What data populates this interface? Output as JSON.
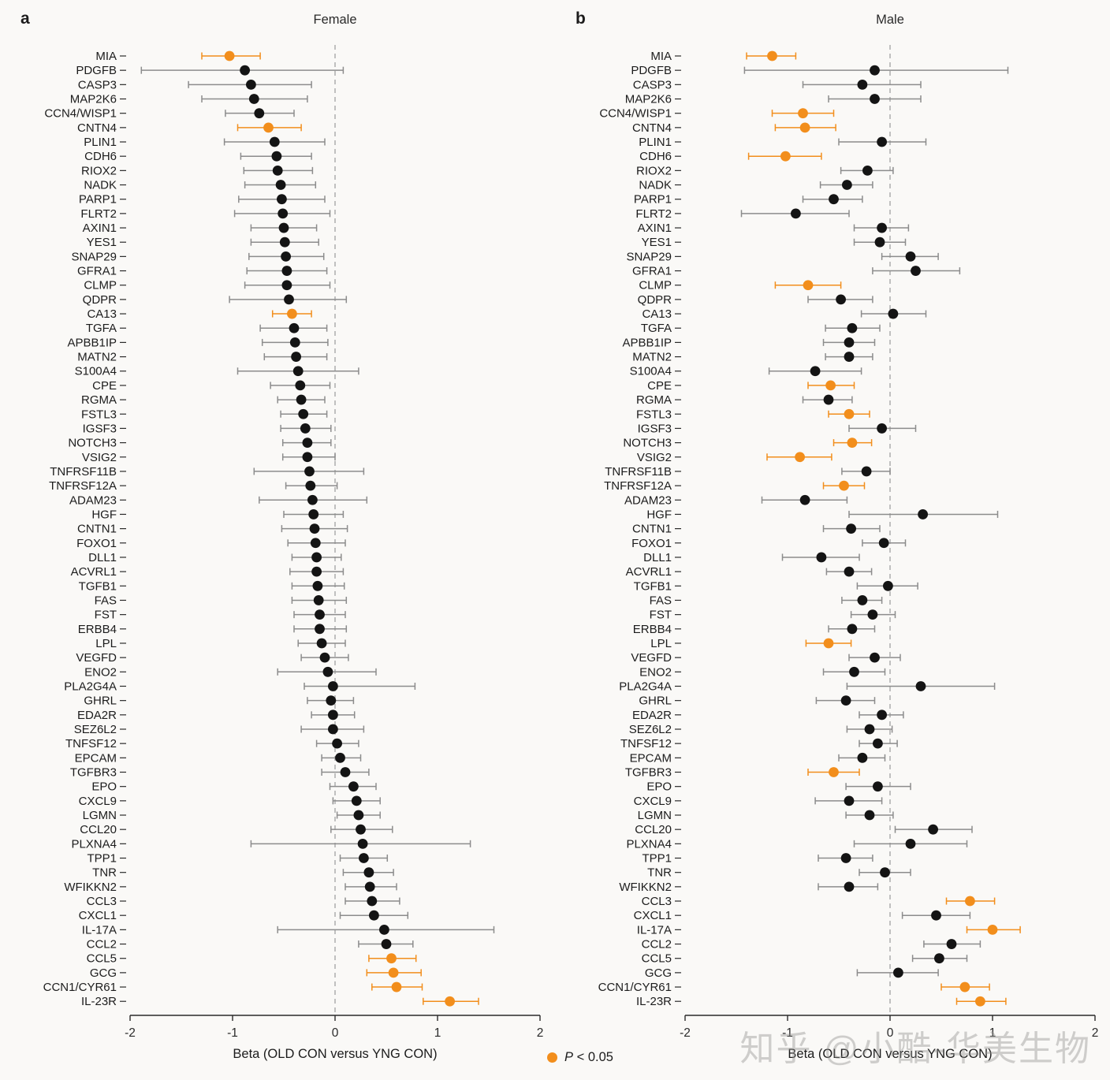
{
  "figure": {
    "legend": {
      "p": "P",
      "rest": " < 0.05"
    },
    "watermark": "知乎 @小酷-华美生物"
  },
  "colors": {
    "significant": "#f28e1c",
    "point": "#141414",
    "errorbar": "#8c8c8c",
    "axis": "#2b2b2b",
    "zero_line": "#a8a8a8",
    "text": "#1c1c1c"
  },
  "chart_data": [
    {
      "id": "female",
      "type": "scatter",
      "panel_letter": "a",
      "title": "Female",
      "xlabel": "Beta (OLD CON versus YNG CON)",
      "xlim": [
        -2,
        2
      ],
      "xticks": [
        -2,
        -1,
        0,
        1,
        2
      ],
      "zero_line": 0,
      "legend_position": "bottom-center",
      "columns": [
        "gene",
        "beta",
        "ci_low",
        "ci_high",
        "significant"
      ],
      "rows": [
        [
          "MIA",
          -1.03,
          -1.3,
          -0.73,
          1
        ],
        [
          "PDGFB",
          -0.88,
          -1.89,
          0.08,
          0
        ],
        [
          "CASP3",
          -0.82,
          -1.43,
          -0.23,
          0
        ],
        [
          "MAP2K6",
          -0.79,
          -1.3,
          -0.27,
          0
        ],
        [
          "CCN4/WISP1",
          -0.74,
          -1.07,
          -0.4,
          0
        ],
        [
          "CNTN4",
          -0.65,
          -0.95,
          -0.33,
          1
        ],
        [
          "PLIN1",
          -0.59,
          -1.08,
          -0.1,
          0
        ],
        [
          "CDH6",
          -0.57,
          -0.92,
          -0.23,
          0
        ],
        [
          "RIOX2",
          -0.56,
          -0.89,
          -0.22,
          0
        ],
        [
          "NADK",
          -0.53,
          -0.88,
          -0.19,
          0
        ],
        [
          "PARP1",
          -0.52,
          -0.94,
          -0.1,
          0
        ],
        [
          "FLRT2",
          -0.51,
          -0.98,
          -0.05,
          0
        ],
        [
          "AXIN1",
          -0.5,
          -0.82,
          -0.18,
          0
        ],
        [
          "YES1",
          -0.49,
          -0.82,
          -0.16,
          0
        ],
        [
          "SNAP29",
          -0.48,
          -0.84,
          -0.11,
          0
        ],
        [
          "GFRA1",
          -0.47,
          -0.86,
          -0.08,
          0
        ],
        [
          "CLMP",
          -0.47,
          -0.88,
          -0.05,
          0
        ],
        [
          "QDPR",
          -0.45,
          -1.03,
          0.11,
          0
        ],
        [
          "CA13",
          -0.42,
          -0.61,
          -0.23,
          1
        ],
        [
          "TGFA",
          -0.4,
          -0.73,
          -0.08,
          0
        ],
        [
          "APBB1IP",
          -0.39,
          -0.71,
          -0.07,
          0
        ],
        [
          "MATN2",
          -0.38,
          -0.69,
          -0.08,
          0
        ],
        [
          "S100A4",
          -0.36,
          -0.95,
          0.23,
          0
        ],
        [
          "CPE",
          -0.34,
          -0.63,
          -0.05,
          0
        ],
        [
          "RGMA",
          -0.33,
          -0.56,
          -0.1,
          0
        ],
        [
          "FSTL3",
          -0.31,
          -0.53,
          -0.08,
          0
        ],
        [
          "IGSF3",
          -0.29,
          -0.53,
          -0.04,
          0
        ],
        [
          "NOTCH3",
          -0.27,
          -0.51,
          -0.04,
          0
        ],
        [
          "VSIG2",
          -0.27,
          -0.51,
          0.0,
          0
        ],
        [
          "TNFRSF11B",
          -0.25,
          -0.79,
          0.28,
          0
        ],
        [
          "TNFRSF12A",
          -0.24,
          -0.48,
          0.02,
          0
        ],
        [
          "ADAM23",
          -0.22,
          -0.74,
          0.31,
          0
        ],
        [
          "HGF",
          -0.21,
          -0.5,
          0.08,
          0
        ],
        [
          "CNTN1",
          -0.2,
          -0.52,
          0.12,
          0
        ],
        [
          "FOXO1",
          -0.19,
          -0.46,
          0.1,
          0
        ],
        [
          "DLL1",
          -0.18,
          -0.42,
          0.06,
          0
        ],
        [
          "ACVRL1",
          -0.18,
          -0.44,
          0.08,
          0
        ],
        [
          "TGFB1",
          -0.17,
          -0.42,
          0.09,
          0
        ],
        [
          "FAS",
          -0.16,
          -0.42,
          0.11,
          0
        ],
        [
          "FST",
          -0.15,
          -0.4,
          0.1,
          0
        ],
        [
          "ERBB4",
          -0.15,
          -0.4,
          0.11,
          0
        ],
        [
          "LPL",
          -0.13,
          -0.36,
          0.1,
          0
        ],
        [
          "VEGFD",
          -0.1,
          -0.33,
          0.13,
          0
        ],
        [
          "ENO2",
          -0.07,
          -0.56,
          0.4,
          0
        ],
        [
          "PLA2G4A",
          -0.02,
          -0.3,
          0.78,
          0
        ],
        [
          "GHRL",
          -0.04,
          -0.27,
          0.18,
          0
        ],
        [
          "EDA2R",
          -0.02,
          -0.23,
          0.19,
          0
        ],
        [
          "SEZ6L2",
          -0.02,
          -0.33,
          0.28,
          0
        ],
        [
          "TNFSF12",
          0.02,
          -0.18,
          0.23,
          0
        ],
        [
          "EPCAM",
          0.05,
          -0.13,
          0.25,
          0
        ],
        [
          "TGFBR3",
          0.1,
          -0.13,
          0.33,
          0
        ],
        [
          "EPO",
          0.18,
          -0.05,
          0.4,
          0
        ],
        [
          "CXCL9",
          0.21,
          -0.02,
          0.44,
          0
        ],
        [
          "LGMN",
          0.23,
          0.02,
          0.44,
          0
        ],
        [
          "CCL20",
          0.25,
          -0.04,
          0.56,
          0
        ],
        [
          "PLXNA4",
          0.27,
          -0.82,
          1.32,
          0
        ],
        [
          "TPP1",
          0.28,
          0.05,
          0.51,
          0
        ],
        [
          "TNR",
          0.33,
          0.08,
          0.57,
          0
        ],
        [
          "WFIKKN2",
          0.34,
          0.1,
          0.6,
          0
        ],
        [
          "CCL3",
          0.36,
          0.1,
          0.63,
          0
        ],
        [
          "CXCL1",
          0.38,
          0.05,
          0.71,
          0
        ],
        [
          "IL-17A",
          0.48,
          -0.56,
          1.55,
          0
        ],
        [
          "CCL2",
          0.5,
          0.23,
          0.76,
          0
        ],
        [
          "CCL5",
          0.55,
          0.33,
          0.79,
          1
        ],
        [
          "GCG",
          0.57,
          0.31,
          0.84,
          1
        ],
        [
          "CCN1/CYR61",
          0.6,
          0.36,
          0.85,
          1
        ],
        [
          "IL-23R",
          1.12,
          0.86,
          1.4,
          1
        ]
      ]
    },
    {
      "id": "male",
      "type": "scatter",
      "panel_letter": "b",
      "title": "Male",
      "xlabel": "Beta (OLD CON versus YNG CON)",
      "xlim": [
        -2,
        2
      ],
      "xticks": [
        -2,
        -1,
        0,
        1,
        2
      ],
      "zero_line": 0,
      "legend_position": "bottom-center",
      "columns": [
        "gene",
        "beta",
        "ci_low",
        "ci_high",
        "significant"
      ],
      "rows": [
        [
          "MIA",
          -1.15,
          -1.4,
          -0.92,
          1
        ],
        [
          "PDGFB",
          -0.15,
          -1.42,
          1.15,
          0
        ],
        [
          "CASP3",
          -0.27,
          -0.85,
          0.3,
          0
        ],
        [
          "MAP2K6",
          -0.15,
          -0.6,
          0.3,
          0
        ],
        [
          "CCN4/WISP1",
          -0.85,
          -1.15,
          -0.55,
          1
        ],
        [
          "CNTN4",
          -0.83,
          -1.12,
          -0.53,
          1
        ],
        [
          "PLIN1",
          -0.08,
          -0.5,
          0.35,
          0
        ],
        [
          "CDH6",
          -1.02,
          -1.38,
          -0.67,
          1
        ],
        [
          "RIOX2",
          -0.22,
          -0.48,
          0.03,
          0
        ],
        [
          "NADK",
          -0.42,
          -0.68,
          -0.17,
          0
        ],
        [
          "PARP1",
          -0.55,
          -0.85,
          -0.27,
          0
        ],
        [
          "FLRT2",
          -0.92,
          -1.45,
          -0.4,
          0
        ],
        [
          "AXIN1",
          -0.08,
          -0.35,
          0.18,
          0
        ],
        [
          "YES1",
          -0.1,
          -0.35,
          0.15,
          0
        ],
        [
          "SNAP29",
          0.2,
          -0.08,
          0.47,
          0
        ],
        [
          "GFRA1",
          0.25,
          -0.17,
          0.68,
          0
        ],
        [
          "CLMP",
          -0.8,
          -1.12,
          -0.48,
          1
        ],
        [
          "QDPR",
          -0.48,
          -0.8,
          -0.17,
          0
        ],
        [
          "CA13",
          0.03,
          -0.28,
          0.35,
          0
        ],
        [
          "TGFA",
          -0.37,
          -0.63,
          -0.1,
          0
        ],
        [
          "APBB1IP",
          -0.4,
          -0.65,
          -0.15,
          0
        ],
        [
          "MATN2",
          -0.4,
          -0.63,
          -0.17,
          0
        ],
        [
          "S100A4",
          -0.73,
          -1.18,
          -0.28,
          0
        ],
        [
          "CPE",
          -0.58,
          -0.8,
          -0.35,
          1
        ],
        [
          "RGMA",
          -0.6,
          -0.85,
          -0.37,
          0
        ],
        [
          "FSTL3",
          -0.4,
          -0.6,
          -0.2,
          1
        ],
        [
          "IGSF3",
          -0.08,
          -0.4,
          0.25,
          0
        ],
        [
          "NOTCH3",
          -0.37,
          -0.55,
          -0.18,
          1
        ],
        [
          "VSIG2",
          -0.88,
          -1.2,
          -0.57,
          1
        ],
        [
          "TNFRSF11B",
          -0.23,
          -0.47,
          0.0,
          0
        ],
        [
          "TNFRSF12A",
          -0.45,
          -0.65,
          -0.25,
          1
        ],
        [
          "ADAM23",
          -0.83,
          -1.25,
          -0.42,
          0
        ],
        [
          "HGF",
          0.32,
          -0.4,
          1.05,
          0
        ],
        [
          "CNTN1",
          -0.38,
          -0.65,
          -0.1,
          0
        ],
        [
          "FOXO1",
          -0.06,
          -0.27,
          0.15,
          0
        ],
        [
          "DLL1",
          -0.67,
          -1.05,
          -0.3,
          0
        ],
        [
          "ACVRL1",
          -0.4,
          -0.62,
          -0.18,
          0
        ],
        [
          "TGFB1",
          -0.02,
          -0.32,
          0.27,
          0
        ],
        [
          "FAS",
          -0.27,
          -0.47,
          -0.08,
          0
        ],
        [
          "FST",
          -0.17,
          -0.38,
          0.05,
          0
        ],
        [
          "ERBB4",
          -0.37,
          -0.6,
          -0.15,
          0
        ],
        [
          "LPL",
          -0.6,
          -0.82,
          -0.38,
          1
        ],
        [
          "VEGFD",
          -0.15,
          -0.4,
          0.1,
          0
        ],
        [
          "ENO2",
          -0.35,
          -0.65,
          -0.05,
          0
        ],
        [
          "PLA2G4A",
          0.3,
          -0.42,
          1.02,
          0
        ],
        [
          "GHRL",
          -0.43,
          -0.72,
          -0.15,
          0
        ],
        [
          "EDA2R",
          -0.08,
          -0.3,
          0.13,
          0
        ],
        [
          "SEZ6L2",
          -0.2,
          -0.42,
          0.02,
          0
        ],
        [
          "TNFSF12",
          -0.12,
          -0.3,
          0.07,
          0
        ],
        [
          "EPCAM",
          -0.27,
          -0.5,
          -0.05,
          0
        ],
        [
          "TGFBR3",
          -0.55,
          -0.8,
          -0.3,
          1
        ],
        [
          "EPO",
          -0.12,
          -0.43,
          0.2,
          0
        ],
        [
          "CXCL9",
          -0.4,
          -0.73,
          -0.08,
          0
        ],
        [
          "LGMN",
          -0.2,
          -0.43,
          0.03,
          0
        ],
        [
          "CCL20",
          0.42,
          0.05,
          0.8,
          0
        ],
        [
          "PLXNA4",
          0.2,
          -0.35,
          0.75,
          0
        ],
        [
          "TPP1",
          -0.43,
          -0.7,
          -0.17,
          0
        ],
        [
          "TNR",
          -0.05,
          -0.3,
          0.2,
          0
        ],
        [
          "WFIKKN2",
          -0.4,
          -0.7,
          -0.12,
          0
        ],
        [
          "CCL3",
          0.78,
          0.55,
          1.02,
          1
        ],
        [
          "CXCL1",
          0.45,
          0.12,
          0.78,
          0
        ],
        [
          "IL-17A",
          1.0,
          0.75,
          1.27,
          1
        ],
        [
          "CCL2",
          0.6,
          0.33,
          0.88,
          0
        ],
        [
          "CCL5",
          0.48,
          0.22,
          0.75,
          0
        ],
        [
          "GCG",
          0.08,
          -0.32,
          0.47,
          0
        ],
        [
          "CCN1/CYR61",
          0.73,
          0.5,
          0.97,
          1
        ],
        [
          "IL-23R",
          0.88,
          0.65,
          1.13,
          1
        ]
      ]
    }
  ]
}
